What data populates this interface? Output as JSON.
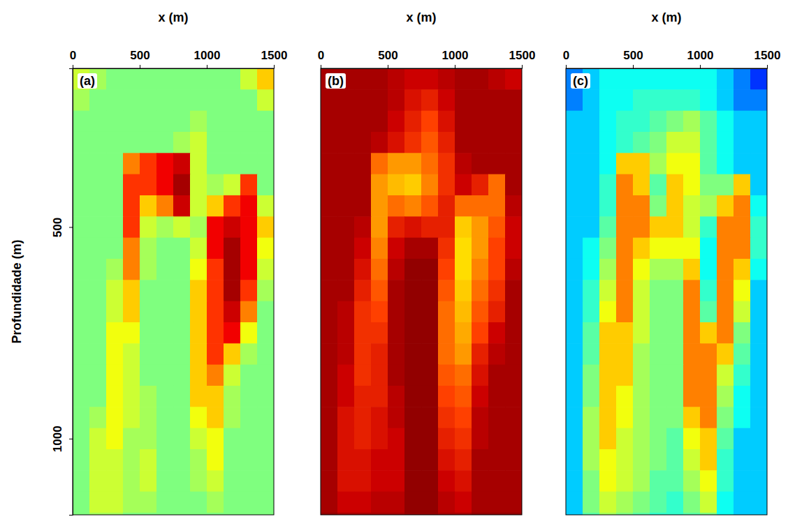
{
  "chart_data": [
    {
      "type": "heatmap",
      "title": "(a)",
      "x_label": "x (m)",
      "y_label": "Profundidade (m)",
      "xlim": [
        0,
        1500
      ],
      "ylim": [
        125,
        1180
      ],
      "xticks": [
        0,
        500,
        1000,
        1500
      ],
      "yticks": [
        500,
        1000
      ],
      "zlim": [
        0,
        1
      ],
      "colors": [
        "#00008f",
        "#0000ff",
        "#00ffff",
        "#7fff7f",
        "#ffff00",
        "#ff0000",
        "#7f0000"
      ],
      "x": [
        62.5,
        187.5,
        312.5,
        437.5,
        562.5,
        687.5,
        812.5,
        937.5,
        1062.5,
        1187.5,
        1312.5,
        1437.5
      ],
      "y": [
        150,
        200,
        250,
        300,
        350,
        400,
        450,
        500,
        550,
        600,
        650,
        700,
        750,
        800,
        850,
        900,
        950,
        1000,
        1050,
        1100,
        1150,
        1200
      ],
      "cells": [
        [
          0.6,
          0.55,
          0.5,
          0.5,
          0.5,
          0.5,
          0.5,
          0.5,
          0.5,
          0.5,
          0.6,
          0.7
        ],
        [
          0.55,
          0.5,
          0.5,
          0.5,
          0.5,
          0.5,
          0.5,
          0.5,
          0.5,
          0.5,
          0.5,
          0.6
        ],
        [
          0.5,
          0.5,
          0.5,
          0.5,
          0.5,
          0.5,
          0.5,
          0.55,
          0.5,
          0.5,
          0.5,
          0.5
        ],
        [
          0.5,
          0.5,
          0.5,
          0.5,
          0.5,
          0.5,
          0.55,
          0.6,
          0.5,
          0.5,
          0.5,
          0.5
        ],
        [
          0.5,
          0.5,
          0.5,
          0.75,
          0.8,
          0.85,
          0.9,
          0.6,
          0.5,
          0.5,
          0.5,
          0.5
        ],
        [
          0.5,
          0.5,
          0.5,
          0.8,
          0.8,
          0.85,
          0.95,
          0.6,
          0.55,
          0.6,
          0.8,
          0.5
        ],
        [
          0.5,
          0.5,
          0.5,
          0.8,
          0.7,
          0.75,
          0.9,
          0.6,
          0.7,
          0.8,
          0.85,
          0.6
        ],
        [
          0.5,
          0.5,
          0.5,
          0.8,
          0.6,
          0.55,
          0.6,
          0.55,
          0.85,
          0.9,
          0.85,
          0.7
        ],
        [
          0.5,
          0.5,
          0.5,
          0.75,
          0.55,
          0.5,
          0.5,
          0.6,
          0.85,
          0.95,
          0.85,
          0.65
        ],
        [
          0.5,
          0.5,
          0.55,
          0.75,
          0.55,
          0.5,
          0.5,
          0.65,
          0.8,
          0.95,
          0.85,
          0.6
        ],
        [
          0.5,
          0.5,
          0.6,
          0.7,
          0.5,
          0.5,
          0.5,
          0.7,
          0.8,
          0.95,
          0.8,
          0.55
        ],
        [
          0.5,
          0.5,
          0.6,
          0.7,
          0.5,
          0.5,
          0.5,
          0.7,
          0.8,
          0.9,
          0.75,
          0.5
        ],
        [
          0.5,
          0.5,
          0.65,
          0.65,
          0.5,
          0.5,
          0.5,
          0.7,
          0.8,
          0.85,
          0.65,
          0.5
        ],
        [
          0.5,
          0.5,
          0.65,
          0.6,
          0.5,
          0.5,
          0.5,
          0.7,
          0.8,
          0.7,
          0.55,
          0.5
        ],
        [
          0.5,
          0.5,
          0.65,
          0.6,
          0.5,
          0.5,
          0.5,
          0.7,
          0.75,
          0.6,
          0.5,
          0.5
        ],
        [
          0.5,
          0.5,
          0.65,
          0.6,
          0.55,
          0.5,
          0.5,
          0.7,
          0.7,
          0.55,
          0.5,
          0.5
        ],
        [
          0.5,
          0.55,
          0.65,
          0.6,
          0.55,
          0.5,
          0.5,
          0.65,
          0.7,
          0.55,
          0.5,
          0.5
        ],
        [
          0.5,
          0.6,
          0.65,
          0.55,
          0.55,
          0.5,
          0.5,
          0.6,
          0.65,
          0.5,
          0.5,
          0.5
        ],
        [
          0.5,
          0.6,
          0.6,
          0.55,
          0.6,
          0.5,
          0.5,
          0.55,
          0.65,
          0.5,
          0.5,
          0.5
        ],
        [
          0.5,
          0.6,
          0.6,
          0.55,
          0.6,
          0.5,
          0.5,
          0.55,
          0.6,
          0.5,
          0.5,
          0.5
        ],
        [
          0.5,
          0.6,
          0.6,
          0.55,
          0.55,
          0.5,
          0.5,
          0.5,
          0.55,
          0.5,
          0.5,
          0.5
        ],
        [
          0.5,
          0.55,
          0.55,
          0.5,
          0.5,
          0.5,
          0.5,
          0.5,
          0.5,
          0.5,
          0.5,
          0.5
        ]
      ]
    },
    {
      "type": "heatmap",
      "title": "(b)",
      "x_label": "x (m)",
      "tick_labels": "x",
      "xlim": [
        0,
        1500
      ],
      "ylim": [
        125,
        1180
      ],
      "xticks": [
        0,
        500,
        1000,
        1500
      ],
      "zlim": [
        0,
        1
      ],
      "colors": [
        "#7f0000",
        "#cc0000",
        "#ff4000",
        "#ff9900",
        "#ffdd00",
        "#ffff66"
      ],
      "x": [
        62.5,
        187.5,
        312.5,
        437.5,
        562.5,
        687.5,
        812.5,
        937.5,
        1062.5,
        1187.5,
        1312.5,
        1437.5
      ],
      "y": [
        150,
        200,
        250,
        300,
        350,
        400,
        450,
        500,
        550,
        600,
        650,
        700,
        750,
        800,
        850,
        900,
        950,
        1000,
        1050,
        1100,
        1150,
        1200
      ],
      "cells": [
        [
          0.1,
          0.1,
          0.1,
          0.1,
          0.15,
          0.2,
          0.2,
          0.15,
          0.1,
          0.1,
          0.15,
          0.2
        ],
        [
          0.1,
          0.1,
          0.1,
          0.1,
          0.15,
          0.25,
          0.3,
          0.2,
          0.1,
          0.1,
          0.1,
          0.1
        ],
        [
          0.1,
          0.1,
          0.1,
          0.1,
          0.2,
          0.3,
          0.4,
          0.25,
          0.1,
          0.1,
          0.1,
          0.1
        ],
        [
          0.1,
          0.1,
          0.1,
          0.15,
          0.25,
          0.35,
          0.45,
          0.3,
          0.1,
          0.1,
          0.1,
          0.1
        ],
        [
          0.1,
          0.1,
          0.1,
          0.5,
          0.6,
          0.6,
          0.5,
          0.35,
          0.15,
          0.1,
          0.1,
          0.1
        ],
        [
          0.1,
          0.1,
          0.1,
          0.6,
          0.7,
          0.75,
          0.55,
          0.35,
          0.2,
          0.3,
          0.5,
          0.1
        ],
        [
          0.1,
          0.1,
          0.1,
          0.6,
          0.5,
          0.55,
          0.45,
          0.3,
          0.5,
          0.5,
          0.5,
          0.15
        ],
        [
          0.1,
          0.1,
          0.15,
          0.6,
          0.3,
          0.25,
          0.3,
          0.3,
          0.75,
          0.6,
          0.45,
          0.2
        ],
        [
          0.1,
          0.1,
          0.2,
          0.55,
          0.2,
          0.1,
          0.1,
          0.35,
          0.8,
          0.6,
          0.4,
          0.2
        ],
        [
          0.1,
          0.1,
          0.25,
          0.5,
          0.15,
          0.05,
          0.05,
          0.4,
          0.8,
          0.55,
          0.4,
          0.15
        ],
        [
          0.1,
          0.1,
          0.3,
          0.45,
          0.1,
          0.05,
          0.05,
          0.45,
          0.75,
          0.5,
          0.35,
          0.1
        ],
        [
          0.1,
          0.15,
          0.35,
          0.4,
          0.1,
          0.05,
          0.05,
          0.5,
          0.7,
          0.45,
          0.3,
          0.1
        ],
        [
          0.1,
          0.15,
          0.35,
          0.35,
          0.1,
          0.05,
          0.05,
          0.5,
          0.65,
          0.4,
          0.2,
          0.1
        ],
        [
          0.1,
          0.15,
          0.35,
          0.3,
          0.1,
          0.05,
          0.05,
          0.5,
          0.6,
          0.3,
          0.15,
          0.1
        ],
        [
          0.1,
          0.2,
          0.35,
          0.3,
          0.1,
          0.05,
          0.05,
          0.45,
          0.5,
          0.25,
          0.1,
          0.1
        ],
        [
          0.1,
          0.2,
          0.3,
          0.3,
          0.15,
          0.05,
          0.05,
          0.4,
          0.45,
          0.2,
          0.1,
          0.1
        ],
        [
          0.1,
          0.25,
          0.3,
          0.25,
          0.15,
          0.05,
          0.05,
          0.35,
          0.4,
          0.15,
          0.1,
          0.1
        ],
        [
          0.1,
          0.25,
          0.3,
          0.25,
          0.2,
          0.05,
          0.05,
          0.3,
          0.35,
          0.15,
          0.1,
          0.1
        ],
        [
          0.1,
          0.25,
          0.25,
          0.2,
          0.2,
          0.05,
          0.05,
          0.25,
          0.3,
          0.1,
          0.1,
          0.1
        ],
        [
          0.1,
          0.25,
          0.25,
          0.2,
          0.2,
          0.05,
          0.05,
          0.2,
          0.25,
          0.1,
          0.1,
          0.1
        ],
        [
          0.1,
          0.2,
          0.2,
          0.15,
          0.15,
          0.05,
          0.05,
          0.15,
          0.2,
          0.1,
          0.1,
          0.1
        ],
        [
          0.05,
          0.1,
          0.1,
          0.1,
          0.1,
          0.05,
          0.05,
          0.1,
          0.1,
          0.05,
          0.05,
          0.05
        ]
      ]
    },
    {
      "type": "heatmap",
      "title": "(c)",
      "x_label": "x (m)",
      "tick_labels": "x",
      "xlim": [
        0,
        1500
      ],
      "ylim": [
        125,
        1180
      ],
      "xticks": [
        0,
        500,
        1000,
        1500
      ],
      "zlim": [
        0,
        1
      ],
      "colors": [
        "#00008f",
        "#0000ff",
        "#00ffff",
        "#7fff7f",
        "#ffff00",
        "#ff0000",
        "#7f0000"
      ],
      "x": [
        62.5,
        187.5,
        312.5,
        437.5,
        562.5,
        687.5,
        812.5,
        937.5,
        1062.5,
        1187.5,
        1312.5,
        1437.5
      ],
      "y": [
        150,
        200,
        250,
        300,
        350,
        400,
        450,
        500,
        550,
        600,
        650,
        700,
        750,
        800,
        850,
        900,
        950,
        1000,
        1050,
        1100,
        1150,
        1200
      ],
      "cells": [
        [
          0.25,
          0.3,
          0.35,
          0.35,
          0.35,
          0.35,
          0.35,
          0.35,
          0.35,
          0.3,
          0.25,
          0.2
        ],
        [
          0.25,
          0.3,
          0.35,
          0.35,
          0.4,
          0.4,
          0.4,
          0.4,
          0.35,
          0.3,
          0.25,
          0.25
        ],
        [
          0.3,
          0.3,
          0.35,
          0.4,
          0.4,
          0.45,
          0.5,
          0.55,
          0.45,
          0.35,
          0.3,
          0.3
        ],
        [
          0.3,
          0.3,
          0.35,
          0.4,
          0.45,
          0.5,
          0.6,
          0.6,
          0.45,
          0.35,
          0.3,
          0.3
        ],
        [
          0.3,
          0.3,
          0.35,
          0.7,
          0.7,
          0.55,
          0.65,
          0.65,
          0.45,
          0.35,
          0.3,
          0.3
        ],
        [
          0.3,
          0.3,
          0.4,
          0.75,
          0.7,
          0.45,
          0.7,
          0.65,
          0.5,
          0.5,
          0.7,
          0.3
        ],
        [
          0.3,
          0.3,
          0.4,
          0.75,
          0.75,
          0.5,
          0.7,
          0.6,
          0.55,
          0.7,
          0.75,
          0.35
        ],
        [
          0.3,
          0.3,
          0.45,
          0.75,
          0.75,
          0.7,
          0.7,
          0.6,
          0.4,
          0.75,
          0.75,
          0.4
        ],
        [
          0.3,
          0.35,
          0.5,
          0.75,
          0.7,
          0.65,
          0.65,
          0.65,
          0.35,
          0.75,
          0.75,
          0.4
        ],
        [
          0.3,
          0.35,
          0.55,
          0.75,
          0.65,
          0.55,
          0.55,
          0.7,
          0.35,
          0.75,
          0.7,
          0.35
        ],
        [
          0.3,
          0.4,
          0.6,
          0.75,
          0.6,
          0.5,
          0.5,
          0.75,
          0.4,
          0.75,
          0.65,
          0.3
        ],
        [
          0.3,
          0.4,
          0.65,
          0.75,
          0.6,
          0.5,
          0.5,
          0.75,
          0.45,
          0.75,
          0.6,
          0.3
        ],
        [
          0.3,
          0.45,
          0.7,
          0.7,
          0.6,
          0.5,
          0.5,
          0.75,
          0.7,
          0.75,
          0.5,
          0.3
        ],
        [
          0.3,
          0.45,
          0.7,
          0.7,
          0.55,
          0.5,
          0.5,
          0.75,
          0.75,
          0.7,
          0.45,
          0.3
        ],
        [
          0.3,
          0.5,
          0.7,
          0.7,
          0.55,
          0.5,
          0.5,
          0.75,
          0.75,
          0.6,
          0.4,
          0.3
        ],
        [
          0.3,
          0.5,
          0.7,
          0.65,
          0.55,
          0.5,
          0.5,
          0.75,
          0.75,
          0.55,
          0.35,
          0.3
        ],
        [
          0.3,
          0.55,
          0.7,
          0.65,
          0.55,
          0.5,
          0.5,
          0.7,
          0.75,
          0.5,
          0.35,
          0.3
        ],
        [
          0.3,
          0.55,
          0.7,
          0.6,
          0.55,
          0.5,
          0.45,
          0.65,
          0.7,
          0.45,
          0.3,
          0.3
        ],
        [
          0.3,
          0.55,
          0.65,
          0.6,
          0.55,
          0.5,
          0.45,
          0.6,
          0.7,
          0.4,
          0.3,
          0.3
        ],
        [
          0.3,
          0.5,
          0.65,
          0.6,
          0.55,
          0.45,
          0.45,
          0.55,
          0.65,
          0.4,
          0.3,
          0.3
        ],
        [
          0.3,
          0.5,
          0.6,
          0.55,
          0.5,
          0.45,
          0.4,
          0.5,
          0.6,
          0.35,
          0.3,
          0.3
        ],
        [
          0.3,
          0.45,
          0.55,
          0.5,
          0.45,
          0.4,
          0.4,
          0.45,
          0.5,
          0.35,
          0.3,
          0.3
        ]
      ]
    }
  ]
}
